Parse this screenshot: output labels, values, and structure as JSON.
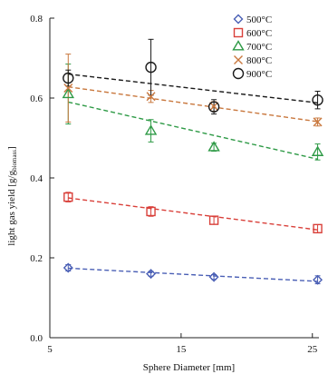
{
  "chart_data": {
    "type": "scatter",
    "xlabel": "Sphere Diameter [mm]",
    "ylabel": "light gas yield [g/g",
    "ylabel_sub": "biomass",
    "ylabel_end": "]",
    "xlim": [
      5,
      25.5
    ],
    "ylim": [
      0,
      0.8
    ],
    "x_ticks": [
      5,
      15,
      25
    ],
    "y_ticks": [
      "0.0",
      "0.2",
      "0.4",
      "0.6",
      "0.8"
    ],
    "grid": false,
    "legend_position": "top-right",
    "series": [
      {
        "name": "500°C",
        "color": "#4a5fb5",
        "marker": "diamond",
        "x": [
          6.4,
          12.7,
          17.5,
          25.4
        ],
        "y": [
          0.175,
          0.16,
          0.152,
          0.145
        ],
        "err": [
          0.008,
          0.006,
          0.006,
          0.01
        ],
        "fit": [
          [
            6.4,
            0.174
          ],
          [
            25.4,
            0.141
          ]
        ]
      },
      {
        "name": "600°C",
        "color": "#d9403a",
        "marker": "square",
        "x": [
          6.4,
          12.7,
          17.5,
          25.4
        ],
        "y": [
          0.352,
          0.316,
          0.294,
          0.273
        ],
        "err": [
          0.012,
          0.012,
          0.01,
          0.01
        ],
        "fit": [
          [
            6.4,
            0.35
          ],
          [
            25.4,
            0.27
          ]
        ]
      },
      {
        "name": "700°C",
        "color": "#2e9a46",
        "marker": "triangle",
        "x": [
          6.4,
          12.7,
          17.5,
          25.4
        ],
        "y": [
          0.61,
          0.518,
          0.477,
          0.465
        ],
        "err": [
          0.075,
          0.028,
          0.01,
          0.02
        ],
        "fit": [
          [
            6.4,
            0.59
          ],
          [
            25.4,
            0.447
          ]
        ]
      },
      {
        "name": "800°C",
        "color": "#c9783e",
        "marker": "x",
        "x": [
          6.4,
          12.7,
          17.5,
          25.4
        ],
        "y": [
          0.625,
          0.604,
          0.579,
          0.54
        ],
        "err": [
          0.085,
          0.015,
          0.012,
          0.01
        ],
        "fit": [
          [
            6.4,
            0.628
          ],
          [
            25.4,
            0.541
          ]
        ]
      },
      {
        "name": "900°C",
        "color": "#1a1a1a",
        "marker": "circle",
        "x": [
          6.4,
          12.7,
          17.5,
          25.4
        ],
        "y": [
          0.65,
          0.677,
          0.578,
          0.595
        ],
        "err": [
          0.02,
          0.07,
          0.018,
          0.022
        ],
        "fit": [
          [
            6.4,
            0.66
          ],
          [
            25.4,
            0.588
          ]
        ]
      }
    ]
  }
}
